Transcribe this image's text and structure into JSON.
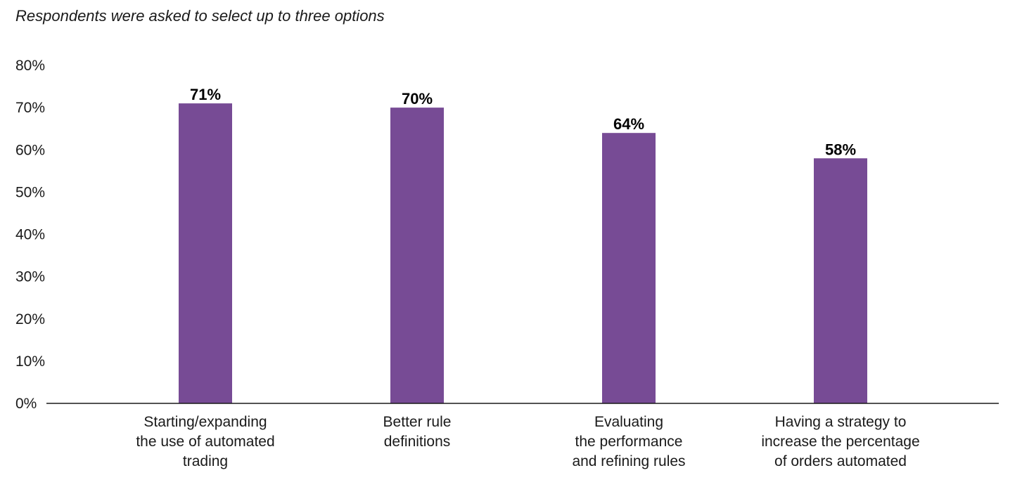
{
  "chart_data": {
    "type": "bar",
    "subtitle": "Respondents were asked to select up to three options",
    "categories": [
      [
        "Starting/expanding",
        "the use of automated",
        "trading"
      ],
      [
        "Better rule",
        "definitions"
      ],
      [
        "Evaluating",
        "the performance",
        "and refining rules"
      ],
      [
        "Having a strategy to",
        "increase the percentage",
        "of orders automated"
      ]
    ],
    "values": [
      71,
      70,
      64,
      58
    ],
    "value_labels": [
      "71%",
      "70%",
      "64%",
      "58%"
    ],
    "ylim": [
      0,
      80
    ],
    "yticks": [
      0,
      10,
      20,
      30,
      40,
      50,
      60,
      70,
      80
    ],
    "ytick_labels": [
      "0%",
      "10%",
      "20%",
      "30%",
      "40%",
      "50%",
      "60%",
      "70%",
      "80%"
    ],
    "grid": false,
    "legend": "none",
    "colors": {
      "bar": "#774b95",
      "axis": "#1a1a1a"
    }
  }
}
